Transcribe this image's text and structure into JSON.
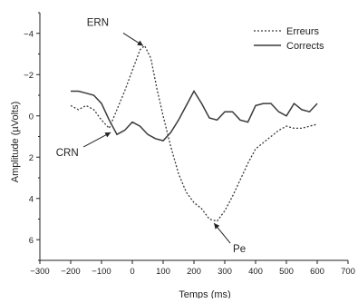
{
  "chart_data": {
    "type": "line",
    "xlabel": "Temps (ms)",
    "ylabel": "Amplitude (µVolts)",
    "xlim": [
      -300,
      700
    ],
    "ylim": [
      -5,
      7
    ],
    "y_inverted": true,
    "x_ticks": [
      -300,
      -200,
      -100,
      0,
      100,
      200,
      300,
      400,
      500,
      600,
      700
    ],
    "x_tick_labels": [
      "−300",
      "−200",
      "−100",
      "0",
      "100",
      "200",
      "300",
      "400",
      "500",
      "600",
      "700"
    ],
    "y_ticks": [
      -4,
      -2,
      0,
      2,
      4,
      6
    ],
    "y_tick_labels": [
      "−4",
      "−2",
      "0",
      "2",
      "4",
      "6"
    ],
    "legend_position": "top-right",
    "series": [
      {
        "name": "Erreurs",
        "style": "dotted",
        "x": [
          -200,
          -175,
          -150,
          -125,
          -100,
          -75,
          -50,
          -25,
          0,
          25,
          40,
          60,
          80,
          100,
          125,
          150,
          175,
          200,
          225,
          250,
          275,
          300,
          325,
          350,
          375,
          400,
          425,
          450,
          475,
          500,
          525,
          550,
          575,
          600
        ],
        "values": [
          -0.5,
          -0.3,
          -0.5,
          -0.3,
          0.2,
          0.6,
          -0.3,
          -1.2,
          -2.2,
          -3.2,
          -3.4,
          -2.8,
          -1.3,
          0.0,
          1.5,
          2.8,
          3.7,
          4.2,
          4.5,
          5.0,
          5.1,
          4.6,
          3.9,
          3.1,
          2.3,
          1.6,
          1.3,
          1.0,
          0.7,
          0.5,
          0.6,
          0.6,
          0.5,
          0.4
        ]
      },
      {
        "name": "Corrects",
        "style": "solid",
        "x": [
          -200,
          -175,
          -150,
          -125,
          -100,
          -75,
          -50,
          -25,
          0,
          25,
          50,
          75,
          100,
          125,
          150,
          175,
          200,
          225,
          250,
          275,
          300,
          325,
          350,
          375,
          400,
          425,
          450,
          475,
          500,
          525,
          550,
          575,
          600
        ],
        "values": [
          -1.2,
          -1.2,
          -1.1,
          -1.0,
          -0.6,
          0.2,
          0.9,
          0.7,
          0.3,
          0.5,
          0.9,
          1.1,
          1.2,
          0.8,
          0.2,
          -0.5,
          -1.2,
          -0.6,
          0.1,
          0.2,
          -0.2,
          -0.2,
          0.2,
          0.3,
          -0.5,
          -0.6,
          -0.6,
          -0.2,
          0.0,
          -0.6,
          -0.3,
          -0.2,
          -0.6
        ]
      }
    ],
    "annotations": [
      {
        "label": "ERN",
        "x": 35,
        "y": -3.4
      },
      {
        "label": "CRN",
        "x": -70,
        "y": 0.8
      },
      {
        "label": "Pe",
        "x": 265,
        "y": 5.2
      }
    ]
  }
}
